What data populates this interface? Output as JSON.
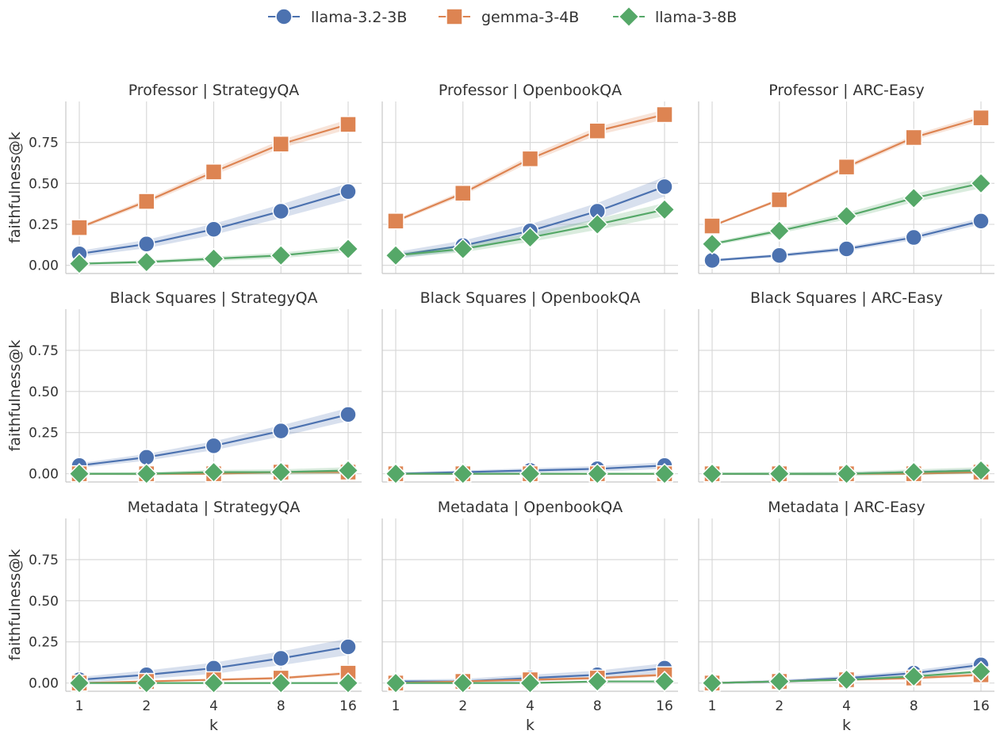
{
  "chart_data": {
    "type": "line",
    "series": [
      {
        "name": "llama-3.2-3B",
        "color": "#4c72b0",
        "marker": "circle"
      },
      {
        "name": "gemma-3-4B",
        "color": "#dd8452",
        "marker": "square"
      },
      {
        "name": "llama-3-8B",
        "color": "#55a868",
        "marker": "diamond"
      }
    ],
    "x": [
      1,
      2,
      4,
      8,
      16
    ],
    "xticks": [
      "1",
      "2",
      "4",
      "8",
      "16"
    ],
    "yticks": [
      "0.00",
      "0.25",
      "0.50",
      "0.75"
    ],
    "xlabel": "k",
    "ylabel": "faithfulness@k",
    "ylim": [
      -0.05,
      1.0
    ],
    "legend_position": "top-center",
    "panels": [
      {
        "title": "Professor | StrategyQA",
        "values": {
          "llama-3.2-3B": [
            0.07,
            0.13,
            0.22,
            0.33,
            0.45
          ],
          "gemma-3-4B": [
            0.23,
            0.39,
            0.57,
            0.74,
            0.86
          ],
          "llama-3-8B": [
            0.01,
            0.02,
            0.04,
            0.06,
            0.1
          ]
        },
        "band": {
          "llama-3.2-3B": 0.05,
          "gemma-3-4B": 0.03,
          "llama-3-8B": 0.02
        }
      },
      {
        "title": "Professor | OpenbookQA",
        "values": {
          "llama-3.2-3B": [
            0.06,
            0.12,
            0.21,
            0.33,
            0.48
          ],
          "gemma-3-4B": [
            0.27,
            0.44,
            0.65,
            0.82,
            0.92
          ],
          "llama-3-8B": [
            0.06,
            0.1,
            0.17,
            0.25,
            0.34
          ]
        },
        "band": {
          "llama-3.2-3B": 0.06,
          "gemma-3-4B": 0.03,
          "llama-3-8B": 0.04
        }
      },
      {
        "title": "Professor | ARC-Easy",
        "values": {
          "llama-3.2-3B": [
            0.03,
            0.06,
            0.1,
            0.17,
            0.27
          ],
          "gemma-3-4B": [
            0.24,
            0.4,
            0.6,
            0.78,
            0.9
          ],
          "llama-3-8B": [
            0.13,
            0.21,
            0.3,
            0.41,
            0.5
          ]
        },
        "band": {
          "llama-3.2-3B": 0.02,
          "gemma-3-4B": 0.02,
          "llama-3-8B": 0.03
        }
      },
      {
        "title": "Black Squares | StrategyQA",
        "values": {
          "llama-3.2-3B": [
            0.05,
            0.1,
            0.17,
            0.26,
            0.36
          ],
          "gemma-3-4B": [
            0.0,
            0.0,
            0.0,
            0.01,
            0.01
          ],
          "llama-3-8B": [
            0.0,
            0.0,
            0.01,
            0.01,
            0.02
          ]
        },
        "band": {
          "llama-3.2-3B": 0.04,
          "gemma-3-4B": 0.01,
          "llama-3-8B": 0.02
        }
      },
      {
        "title": "Black Squares | OpenbookQA",
        "values": {
          "llama-3.2-3B": [
            0.0,
            0.01,
            0.02,
            0.03,
            0.05
          ],
          "gemma-3-4B": [
            0.0,
            0.0,
            0.0,
            0.0,
            0.0
          ],
          "llama-3-8B": [
            0.0,
            0.0,
            0.0,
            0.0,
            0.0
          ]
        },
        "band": {
          "llama-3.2-3B": 0.02,
          "gemma-3-4B": 0.005,
          "llama-3-8B": 0.005
        }
      },
      {
        "title": "Black Squares | ARC-Easy",
        "values": {
          "llama-3.2-3B": [
            0.0,
            0.0,
            0.0,
            0.01,
            0.02
          ],
          "gemma-3-4B": [
            0.0,
            0.0,
            0.0,
            0.0,
            0.01
          ],
          "llama-3-8B": [
            0.0,
            0.0,
            0.0,
            0.01,
            0.02
          ]
        },
        "band": {
          "llama-3.2-3B": 0.01,
          "gemma-3-4B": 0.005,
          "llama-3-8B": 0.02
        }
      },
      {
        "title": "Metadata | StrategyQA",
        "values": {
          "llama-3.2-3B": [
            0.02,
            0.05,
            0.09,
            0.15,
            0.22
          ],
          "gemma-3-4B": [
            0.0,
            0.01,
            0.02,
            0.03,
            0.06
          ],
          "llama-3-8B": [
            0.0,
            0.0,
            0.0,
            0.0,
            0.0
          ]
        },
        "band": {
          "llama-3.2-3B": 0.05,
          "gemma-3-4B": 0.01,
          "llama-3-8B": 0.005
        }
      },
      {
        "title": "Metadata | OpenbookQA",
        "values": {
          "llama-3.2-3B": [
            0.01,
            0.01,
            0.03,
            0.05,
            0.09
          ],
          "gemma-3-4B": [
            0.0,
            0.01,
            0.02,
            0.03,
            0.05
          ],
          "llama-3-8B": [
            0.0,
            0.0,
            0.0,
            0.01,
            0.01
          ]
        },
        "band": {
          "llama-3.2-3B": 0.03,
          "gemma-3-4B": 0.01,
          "llama-3-8B": 0.005
        }
      },
      {
        "title": "Metadata | ARC-Easy",
        "values": {
          "llama-3.2-3B": [
            0.0,
            0.01,
            0.03,
            0.06,
            0.11
          ],
          "gemma-3-4B": [
            0.0,
            0.01,
            0.02,
            0.03,
            0.05
          ],
          "llama-3-8B": [
            0.0,
            0.01,
            0.02,
            0.04,
            0.07
          ]
        },
        "band": {
          "llama-3.2-3B": 0.02,
          "gemma-3-4B": 0.01,
          "llama-3-8B": 0.01
        }
      }
    ]
  }
}
